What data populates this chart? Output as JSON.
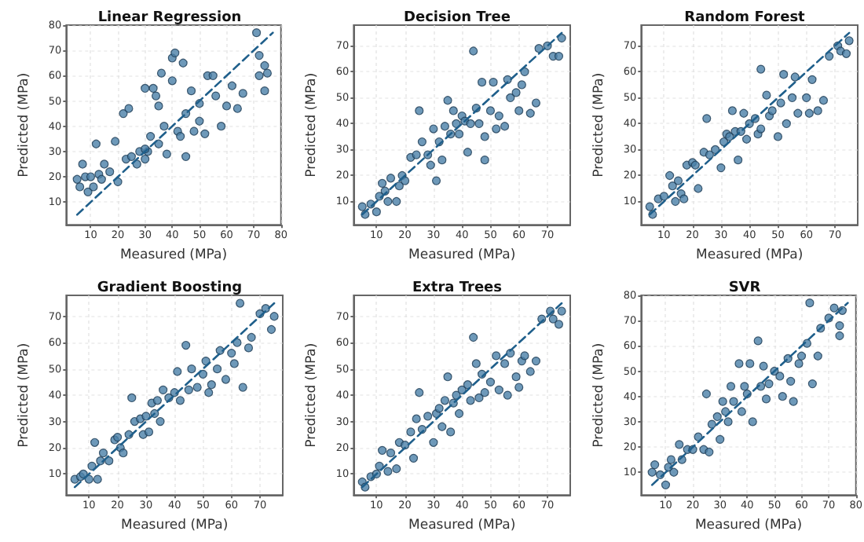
{
  "chart_data": [
    {
      "type": "scatter",
      "title": "Linear Regression",
      "xlabel": "Measured (MPa)",
      "ylabel": "Predicted (MPa)",
      "xlim": [
        1,
        80
      ],
      "ylim": [
        1,
        80
      ],
      "xticks": [
        10,
        20,
        30,
        40,
        50,
        60,
        70,
        80
      ],
      "yticks": [
        10,
        20,
        30,
        40,
        50,
        60,
        70,
        80
      ],
      "grid": true,
      "marker": "circle",
      "series": [
        {
          "color": "#4a7fa8",
          "x": [
            5,
            6,
            7,
            8,
            9,
            10,
            11,
            12,
            13,
            14,
            15,
            17,
            19,
            20,
            22,
            23,
            24,
            25,
            27,
            28,
            30,
            30,
            31,
            32,
            33,
            34,
            35,
            36,
            37,
            38,
            40,
            41,
            40,
            42,
            43,
            44,
            45,
            47,
            48,
            50,
            52,
            53,
            55,
            56,
            58,
            60,
            62,
            64,
            66,
            71,
            72,
            72,
            74,
            75,
            74,
            35,
            30,
            50,
            45
          ],
          "values": [
            19,
            16,
            25,
            20,
            14,
            20,
            16,
            33,
            21,
            19,
            25,
            22,
            34,
            18,
            45,
            27,
            47,
            28,
            25,
            30,
            55,
            27,
            30,
            36,
            55,
            52,
            33,
            61,
            40,
            29,
            67,
            69,
            58,
            38,
            36,
            65,
            28,
            54,
            38,
            49,
            37,
            60,
            60,
            52,
            40,
            48,
            56,
            47,
            53,
            77,
            68,
            60,
            64,
            61,
            54,
            48,
            31,
            42,
            45
          ]
        },
        {
          "type": "line",
          "color": "#1f5f8b",
          "line_style": "dashed",
          "marker": "none",
          "x": [
            5,
            77
          ],
          "values": [
            5,
            77
          ]
        }
      ]
    },
    {
      "type": "scatter",
      "title": "Decision Tree",
      "xlabel": "Measured (MPa)",
      "ylabel": "Predicted (MPa)",
      "xlim": [
        2,
        78
      ],
      "ylim": [
        1,
        78
      ],
      "xticks": [
        10,
        20,
        30,
        40,
        50,
        60,
        70
      ],
      "yticks": [
        10,
        20,
        30,
        40,
        50,
        60,
        70
      ],
      "grid": true,
      "marker": "circle",
      "series": [
        {
          "color": "#4a7fa8",
          "x": [
            5,
            6,
            8,
            10,
            11,
            12,
            13,
            14,
            15,
            17,
            18,
            19,
            20,
            22,
            24,
            25,
            26,
            28,
            29,
            30,
            31,
            32,
            33,
            34,
            35,
            36,
            37,
            39,
            40,
            41,
            42,
            44,
            45,
            46,
            47,
            48,
            48,
            50,
            51,
            52,
            53,
            55,
            56,
            57,
            59,
            60,
            61,
            62,
            64,
            66,
            67,
            70,
            72,
            74,
            75,
            38,
            43
          ],
          "values": [
            8,
            5,
            9,
            6,
            12,
            17,
            14,
            10,
            19,
            10,
            16,
            20,
            18,
            27,
            28,
            45,
            33,
            28,
            24,
            38,
            18,
            33,
            26,
            39,
            49,
            36,
            45,
            36,
            43,
            41,
            29,
            68,
            46,
            40,
            56,
            26,
            35,
            45,
            56,
            38,
            43,
            39,
            57,
            50,
            52,
            45,
            55,
            60,
            44,
            48,
            69,
            70,
            66,
            66,
            73,
            40,
            40
          ]
        },
        {
          "type": "line",
          "color": "#1f5f8b",
          "line_style": "dashed",
          "marker": "none",
          "x": [
            5,
            75
          ],
          "values": [
            5,
            75
          ]
        }
      ]
    },
    {
      "type": "scatter",
      "title": "Random Forest",
      "xlabel": "Measured (MPa)",
      "ylabel": "Predicted (MPa)",
      "xlim": [
        2,
        78
      ],
      "ylim": [
        1,
        78
      ],
      "xticks": [
        10,
        20,
        30,
        40,
        50,
        60,
        70
      ],
      "yticks": [
        10,
        20,
        30,
        40,
        50,
        60,
        70
      ],
      "grid": true,
      "marker": "circle",
      "series": [
        {
          "color": "#4a7fa8",
          "x": [
            5,
            6,
            8,
            10,
            12,
            13,
            14,
            15,
            16,
            17,
            18,
            20,
            21,
            22,
            24,
            25,
            26,
            28,
            30,
            31,
            32,
            33,
            34,
            35,
            36,
            38,
            39,
            40,
            42,
            43,
            44,
            44,
            46,
            47,
            48,
            50,
            51,
            52,
            53,
            55,
            56,
            57,
            60,
            61,
            62,
            64,
            66,
            68,
            71,
            72,
            74,
            75,
            37
          ],
          "values": [
            8,
            5,
            11,
            12,
            20,
            16,
            10,
            18,
            13,
            11,
            24,
            25,
            24,
            15,
            29,
            42,
            28,
            30,
            23,
            33,
            36,
            35,
            45,
            37,
            26,
            44,
            34,
            40,
            42,
            36,
            61,
            38,
            51,
            43,
            45,
            35,
            48,
            59,
            40,
            50,
            58,
            44,
            50,
            44,
            57,
            45,
            49,
            66,
            70,
            68,
            67,
            72,
            37
          ]
        },
        {
          "type": "line",
          "color": "#1f5f8b",
          "line_style": "dashed",
          "marker": "none",
          "x": [
            5,
            75
          ],
          "values": [
            5,
            75
          ]
        }
      ]
    },
    {
      "type": "scatter",
      "title": "Gradient Boosting",
      "xlabel": "Measured (MPa)",
      "ylabel": "Predicted (MPa)",
      "xlim": [
        2,
        78
      ],
      "ylim": [
        2,
        78
      ],
      "xticks": [
        10,
        20,
        30,
        40,
        50,
        60,
        70
      ],
      "yticks": [
        10,
        20,
        30,
        40,
        50,
        60,
        70
      ],
      "grid": true,
      "marker": "circle",
      "series": [
        {
          "color": "#4a7fa8",
          "x": [
            5,
            7,
            8,
            10,
            11,
            12,
            13,
            14,
            15,
            17,
            19,
            20,
            21,
            22,
            24,
            25,
            26,
            28,
            29,
            30,
            31,
            32,
            33,
            34,
            35,
            36,
            38,
            40,
            41,
            42,
            44,
            45,
            46,
            48,
            50,
            51,
            52,
            53,
            55,
            56,
            58,
            60,
            61,
            62,
            63,
            64,
            66,
            67,
            70,
            72,
            74,
            75
          ],
          "values": [
            8,
            9,
            10,
            8,
            13,
            22,
            8,
            15,
            18,
            15,
            23,
            24,
            20,
            18,
            25,
            39,
            30,
            31,
            25,
            32,
            26,
            37,
            33,
            38,
            30,
            42,
            39,
            41,
            49,
            38,
            59,
            42,
            50,
            43,
            48,
            53,
            41,
            44,
            50,
            57,
            46,
            56,
            52,
            60,
            75,
            43,
            58,
            62,
            71,
            73,
            65,
            70
          ]
        },
        {
          "type": "line",
          "color": "#1f5f8b",
          "line_style": "dashed",
          "marker": "none",
          "x": [
            5,
            75
          ],
          "values": [
            5,
            75
          ]
        }
      ]
    },
    {
      "type": "scatter",
      "title": "Extra Trees",
      "xlabel": "Measured (MPa)",
      "ylabel": "Predicted (MPa)",
      "xlim": [
        2,
        78
      ],
      "ylim": [
        2,
        78
      ],
      "xticks": [
        10,
        20,
        30,
        40,
        50,
        60,
        70
      ],
      "yticks": [
        10,
        20,
        30,
        40,
        50,
        60,
        70
      ],
      "grid": true,
      "marker": "circle",
      "series": [
        {
          "color": "#4a7fa8",
          "x": [
            5,
            6,
            8,
            10,
            11,
            12,
            14,
            15,
            17,
            18,
            20,
            22,
            23,
            24,
            25,
            26,
            28,
            30,
            31,
            32,
            33,
            34,
            35,
            36,
            37,
            38,
            39,
            40,
            42,
            43,
            44,
            45,
            46,
            47,
            48,
            50,
            52,
            53,
            55,
            56,
            57,
            59,
            60,
            61,
            62,
            64,
            66,
            68,
            71,
            72,
            74,
            75
          ],
          "values": [
            7,
            5,
            9,
            10,
            13,
            19,
            11,
            18,
            12,
            22,
            21,
            26,
            16,
            31,
            41,
            27,
            32,
            22,
            33,
            35,
            28,
            38,
            47,
            26,
            37,
            40,
            33,
            42,
            44,
            38,
            62,
            52,
            39,
            48,
            41,
            45,
            55,
            42,
            52,
            40,
            56,
            47,
            43,
            53,
            55,
            49,
            53,
            69,
            72,
            69,
            67,
            72
          ]
        },
        {
          "type": "line",
          "color": "#1f5f8b",
          "line_style": "dashed",
          "marker": "none",
          "x": [
            5,
            75
          ],
          "values": [
            5,
            75
          ]
        }
      ]
    },
    {
      "type": "scatter",
      "title": "SVR",
      "xlabel": "Measured (MPa)",
      "ylabel": "Predicted (MPa)",
      "xlim": [
        1,
        80
      ],
      "ylim": [
        1,
        80
      ],
      "xticks": [
        10,
        20,
        30,
        40,
        50,
        60,
        70,
        80
      ],
      "yticks": [
        10,
        20,
        30,
        40,
        50,
        60,
        70,
        80
      ],
      "grid": true,
      "marker": "circle",
      "series": [
        {
          "color": "#4a7fa8",
          "x": [
            5,
            6,
            8,
            10,
            11,
            12,
            13,
            15,
            16,
            18,
            20,
            22,
            24,
            25,
            26,
            27,
            29,
            30,
            31,
            32,
            33,
            34,
            35,
            37,
            38,
            39,
            40,
            41,
            42,
            44,
            45,
            46,
            47,
            48,
            50,
            52,
            53,
            55,
            56,
            57,
            59,
            60,
            62,
            63,
            64,
            66,
            67,
            70,
            72,
            74,
            74,
            75
          ],
          "values": [
            10,
            13,
            9,
            5,
            12,
            15,
            10,
            21,
            15,
            19,
            19,
            24,
            19,
            41,
            18,
            29,
            32,
            23,
            38,
            34,
            30,
            44,
            38,
            53,
            34,
            44,
            41,
            53,
            30,
            62,
            44,
            52,
            39,
            45,
            50,
            48,
            40,
            55,
            46,
            38,
            53,
            56,
            61,
            77,
            45,
            56,
            67,
            71,
            75,
            68,
            64,
            74
          ]
        },
        {
          "type": "line",
          "color": "#1f5f8b",
          "line_style": "dashed",
          "marker": "none",
          "x": [
            5,
            77
          ],
          "values": [
            5,
            77
          ]
        }
      ]
    }
  ]
}
